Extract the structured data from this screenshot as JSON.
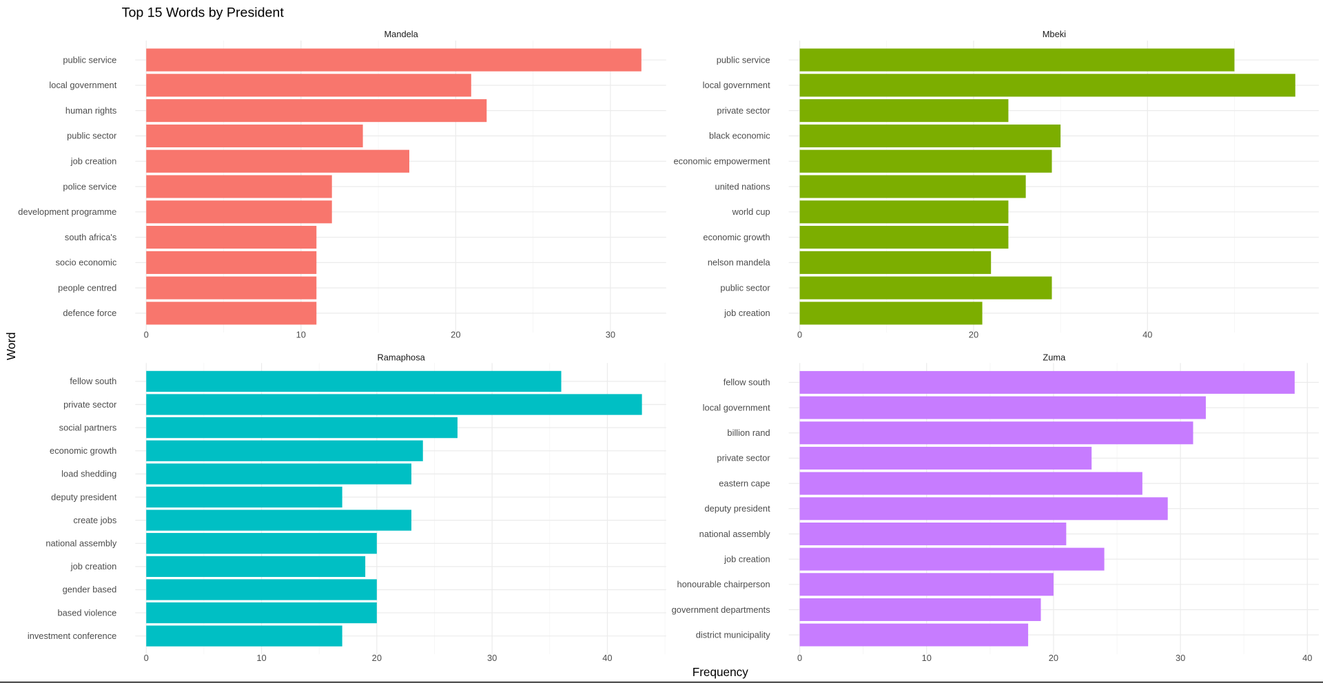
{
  "chart_data": {
    "type": "bar",
    "orientation": "horizontal",
    "title": "Top 15 Words by President",
    "xlabel": "Frequency",
    "ylabel": "Word",
    "grid": true,
    "legend": "none",
    "facets": [
      {
        "name": "Mandela",
        "color": "#F8766D",
        "xlim": [
          0,
          33.6
        ],
        "ticks": [
          0,
          10,
          20,
          30
        ],
        "categories": [
          "public service",
          "local government",
          "human rights",
          "public sector",
          "job creation",
          "police service",
          "development programme",
          "south africa's",
          "socio economic",
          "people centred",
          "defence force"
        ],
        "values": [
          32,
          21,
          22,
          14,
          17,
          12,
          12,
          11,
          11,
          11,
          11
        ]
      },
      {
        "name": "Mbeki",
        "color": "#7CAE00",
        "xlim": [
          0,
          59.7
        ],
        "ticks": [
          0,
          20,
          40
        ],
        "categories": [
          "public service",
          "local government",
          "private sector",
          "black economic",
          "economic empowerment",
          "united nations",
          "world cup",
          "economic growth",
          "nelson mandela",
          "public sector",
          "job creation"
        ],
        "values": [
          50,
          57,
          24,
          30,
          29,
          26,
          24,
          24,
          22,
          29,
          21
        ]
      },
      {
        "name": "Ramaphosa",
        "color": "#00BFC4",
        "xlim": [
          0,
          45.1
        ],
        "ticks": [
          0,
          10,
          20,
          30,
          40
        ],
        "categories": [
          "fellow south",
          "private sector",
          "social partners",
          "economic growth",
          "load shedding",
          "deputy president",
          "create jobs",
          "national assembly",
          "job creation",
          "gender based",
          "based violence",
          "investment conference"
        ],
        "values": [
          36,
          43,
          27,
          24,
          23,
          17,
          23,
          20,
          19,
          20,
          20,
          17
        ]
      },
      {
        "name": "Zuma",
        "color": "#C77CFF",
        "xlim": [
          0,
          40.9
        ],
        "ticks": [
          0,
          10,
          20,
          30,
          40
        ],
        "categories": [
          "fellow south",
          "local government",
          "billion rand",
          "private sector",
          "eastern cape",
          "deputy president",
          "national assembly",
          "job creation",
          "honourable chairperson",
          "government departments",
          "district municipality"
        ],
        "values": [
          39,
          32,
          31,
          23,
          27,
          29,
          21,
          24,
          20,
          19,
          18
        ]
      }
    ]
  }
}
